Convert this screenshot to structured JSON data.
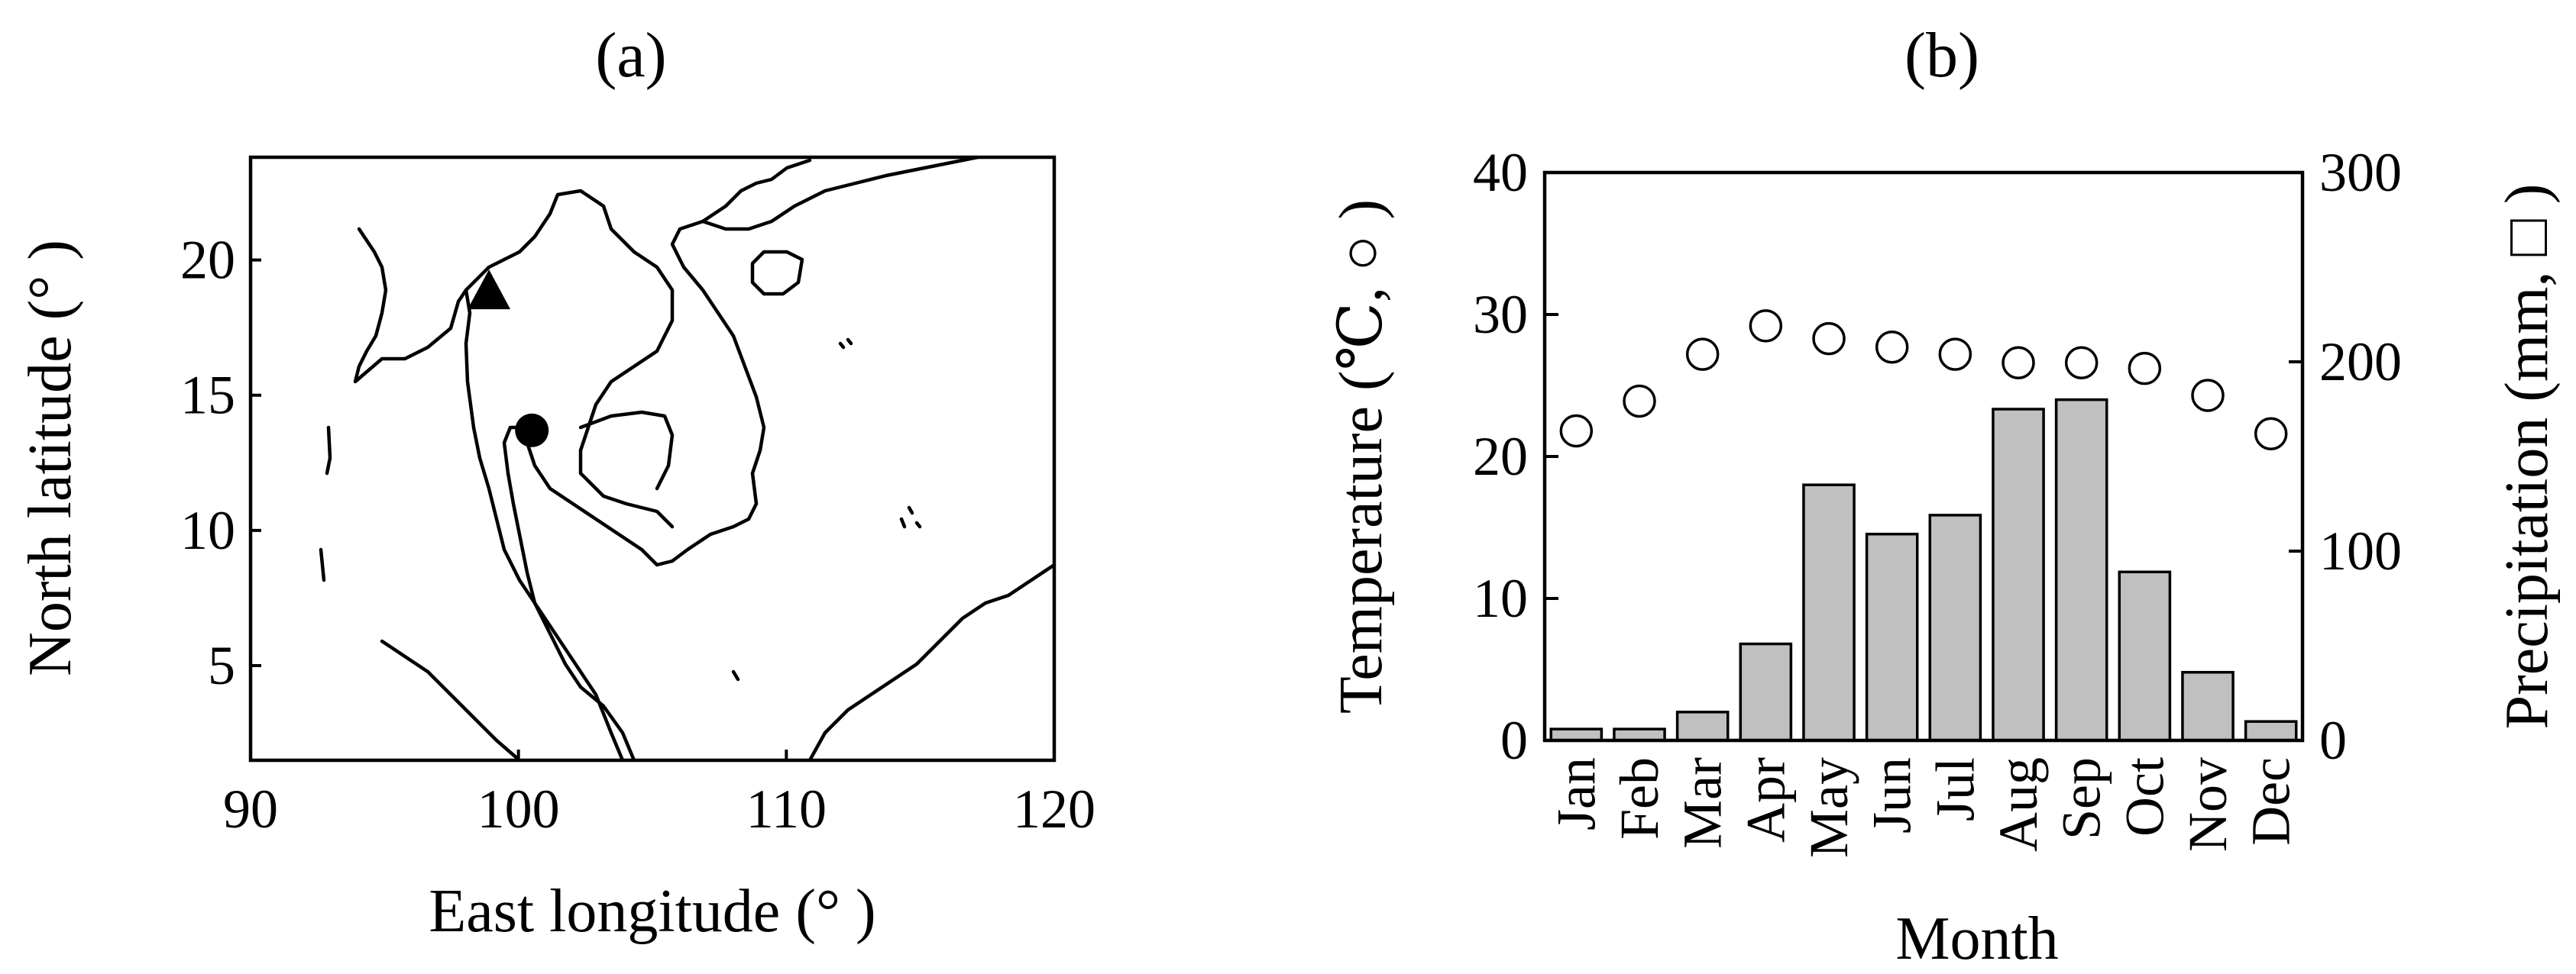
{
  "panels": {
    "a_label": "(a)",
    "b_label": "(b)"
  },
  "map": {
    "xlabel": "East longitude (° )",
    "ylabel": "North latitude (° )",
    "xticks": [
      "90",
      "100",
      "110",
      "120"
    ],
    "yticks": [
      "5",
      "10",
      "15",
      "20"
    ],
    "xlim": [
      90,
      120
    ],
    "ylim": [
      1.5,
      23.8
    ],
    "markers": [
      {
        "shape": "triangle",
        "lon": 98.9,
        "lat": 18.8
      },
      {
        "shape": "circle",
        "lon": 100.5,
        "lat": 13.7
      }
    ]
  },
  "chart_data": {
    "type": "bar",
    "title": "",
    "xlabel": "Month",
    "ylabel": "Temperature (℃, ○ )",
    "y2label": "Precipitation (mm, □ )",
    "categories": [
      "Jan",
      "Feb",
      "Mar",
      "Apr",
      "May",
      "Jun",
      "Jul",
      "Aug",
      "Sep",
      "Oct",
      "Nov",
      "Dec"
    ],
    "ylim": [
      0,
      40
    ],
    "y2lim": [
      0,
      300
    ],
    "yticks": [
      "0",
      "10",
      "20",
      "30",
      "40"
    ],
    "y2ticks": [
      "0",
      "100",
      "200",
      "300"
    ],
    "series": [
      {
        "axis": "right",
        "type": "bar",
        "color": "#c0c0c0",
        "values": [
          6,
          6,
          15,
          51,
          135,
          109,
          119,
          175,
          180,
          89,
          36,
          10
        ]
      },
      {
        "axis": "left",
        "type": "scatter",
        "marker": "open-circle",
        "values": [
          21.8,
          23.9,
          27.2,
          29.2,
          28.3,
          27.7,
          27.2,
          26.6,
          26.6,
          26.2,
          24.3,
          21.6
        ]
      }
    ],
    "grid": false
  }
}
